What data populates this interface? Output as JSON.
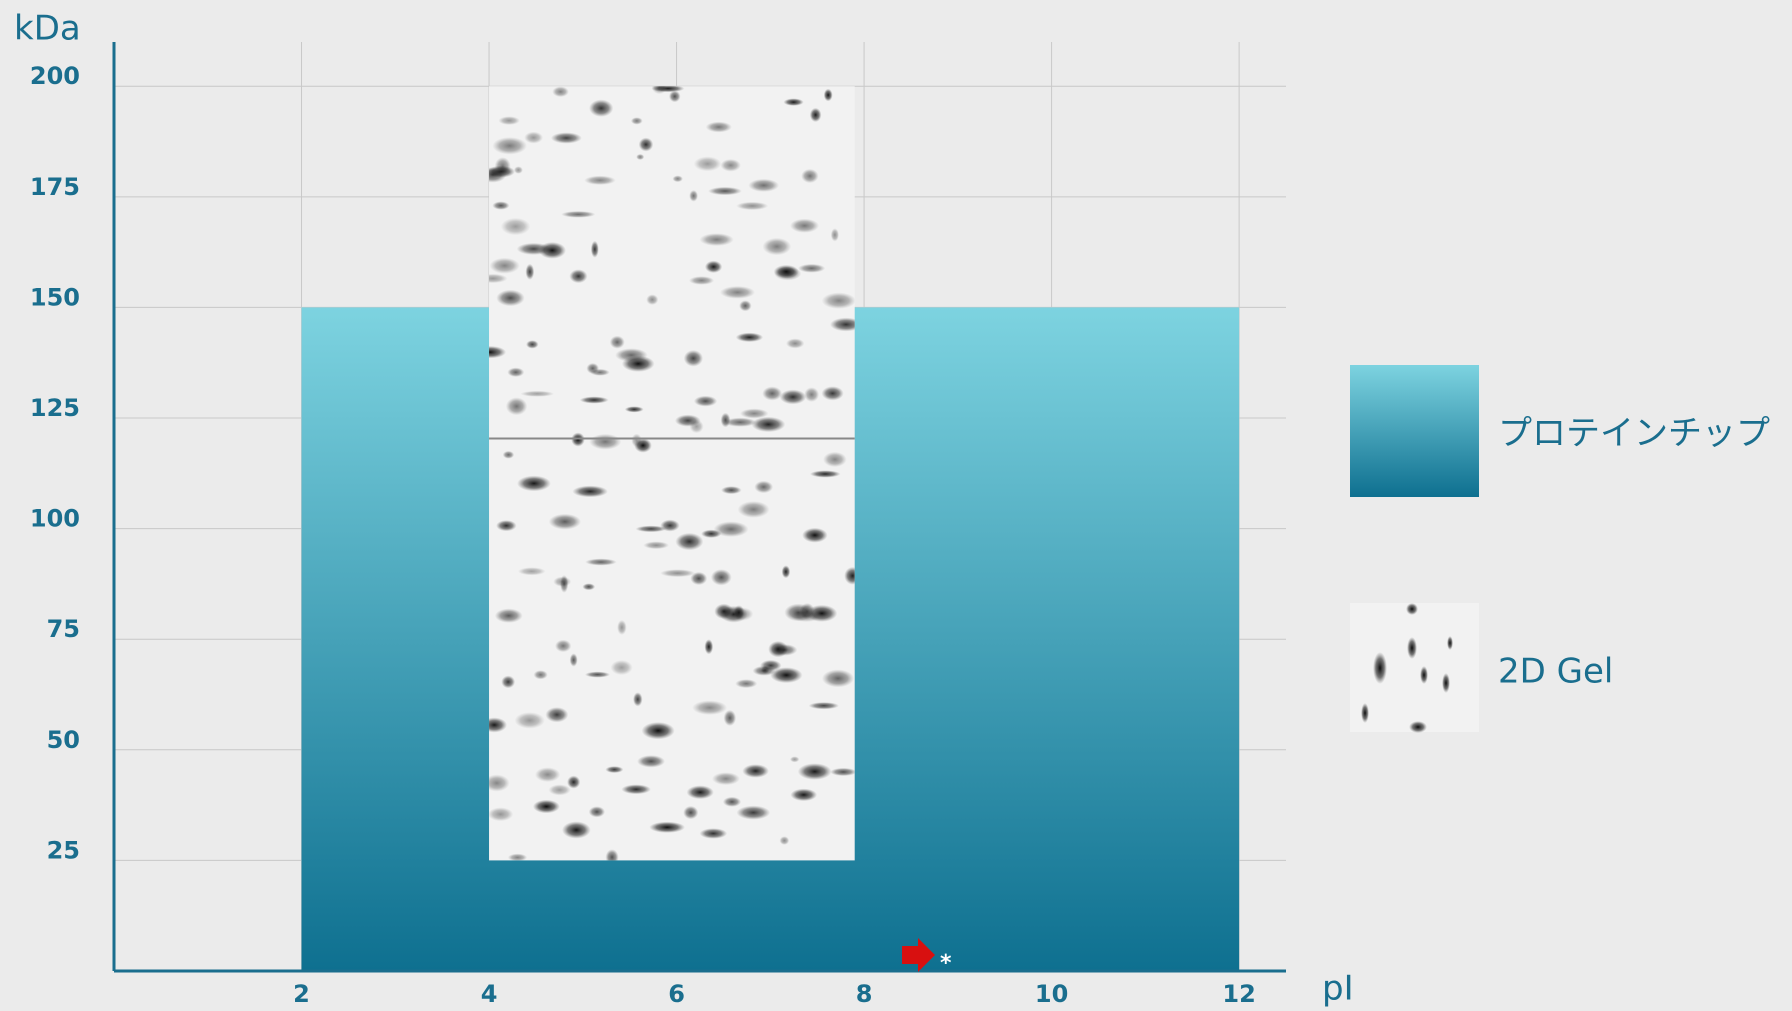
{
  "chart_data": {
    "type": "region",
    "y_label": "kDa",
    "x_label": "pI",
    "xlim": [
      0,
      12.5
    ],
    "ylim": [
      0,
      210
    ],
    "xticks": [
      2,
      4,
      6,
      8,
      10,
      12
    ],
    "yticks": [
      25,
      50,
      75,
      100,
      125,
      150,
      175,
      200
    ],
    "grid": true,
    "regions": [
      {
        "name": "プロテインチップ",
        "x": [
          2,
          12
        ],
        "y": [
          0,
          150
        ],
        "color_top": "#7dd3e0",
        "color_bottom": "#0e7090"
      },
      {
        "name": "2D Gel",
        "x": [
          4,
          7.9
        ],
        "y": [
          25,
          200
        ],
        "color": "#f2f2f2"
      }
    ],
    "annotation": "*"
  }
}
